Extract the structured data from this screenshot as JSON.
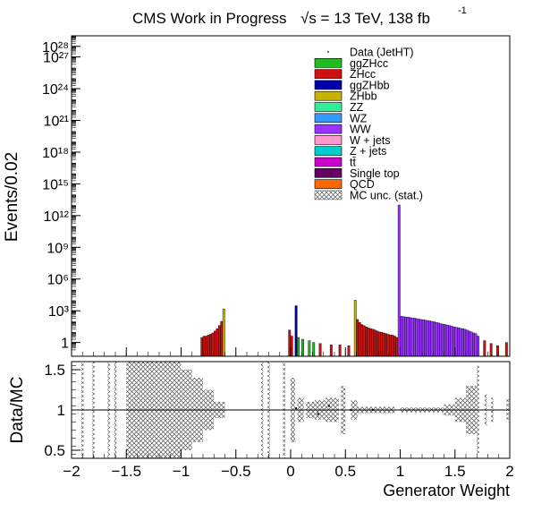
{
  "header": {
    "title": "CMS Work in Progress",
    "energy": "√s = 13 TeV, 138 fb",
    "lumi_sup": "-1"
  },
  "legend": {
    "entries": [
      {
        "label": "Data (JetHT)",
        "color": "#000000",
        "kind": "data"
      },
      {
        "label": "ggZHcc",
        "color": "#22bb22",
        "kind": "fill"
      },
      {
        "label": "ZHcc",
        "color": "#cc1111",
        "kind": "fill"
      },
      {
        "label": "ggZHbb",
        "color": "#0000aa",
        "kind": "fill"
      },
      {
        "label": "ZHbb",
        "color": "#c8b400",
        "kind": "fill"
      },
      {
        "label": "ZZ",
        "color": "#33ee99",
        "kind": "fill"
      },
      {
        "label": "WZ",
        "color": "#3399ff",
        "kind": "fill"
      },
      {
        "label": "WW",
        "color": "#9933ff",
        "kind": "fill"
      },
      {
        "label": "W + jets",
        "color": "#ff99cc",
        "kind": "fill"
      },
      {
        "label": "Z + jets",
        "color": "#00cccc",
        "kind": "fill"
      },
      {
        "label": "tt̄",
        "color": "#cc00cc",
        "kind": "fill"
      },
      {
        "label": "Single top",
        "color": "#660066",
        "kind": "fill"
      },
      {
        "label": "QCD",
        "color": "#ff6600",
        "kind": "fill"
      },
      {
        "label": "MC unc. (stat.)",
        "color": "#555555",
        "kind": "hatch"
      }
    ]
  },
  "chart_data": [
    {
      "type": "bar",
      "panel": "main",
      "ylabel": "Events/0.02",
      "yscale": "log",
      "xlim": [
        -2,
        2
      ],
      "ylim": [
        0.05,
        1e+29
      ],
      "y_ticks": [
        {
          "value": 1,
          "label": "1"
        },
        {
          "value": 1000,
          "label": "10³"
        },
        {
          "value": 1000000,
          "label": "10⁶"
        },
        {
          "value": 1000000000,
          "label": "10⁹"
        },
        {
          "value": 1000000000000.0,
          "label": "10¹²"
        },
        {
          "value": 1000000000000000.0,
          "label": "10¹⁵"
        },
        {
          "value": 1e+18,
          "label": "10¹⁸"
        },
        {
          "value": 1e+21,
          "label": "10²¹"
        },
        {
          "value": 1e+24,
          "label": "10²⁴"
        },
        {
          "value": 1e+27,
          "label": "10²⁷"
        },
        {
          "value": 1e+28,
          "label": "10²⁸"
        }
      ],
      "bins": [
        {
          "x": -0.81,
          "value": 3,
          "series": "ZHcc"
        },
        {
          "x": -0.79,
          "value": 4,
          "series": "ZHcc"
        },
        {
          "x": -0.77,
          "value": 4,
          "series": "ZHcc"
        },
        {
          "x": -0.75,
          "value": 5,
          "series": "ZHcc"
        },
        {
          "x": -0.73,
          "value": 6,
          "series": "ZHcc"
        },
        {
          "x": -0.71,
          "value": 8,
          "series": "ZHcc"
        },
        {
          "x": -0.69,
          "value": 12,
          "series": "ZHcc"
        },
        {
          "x": -0.67,
          "value": 20,
          "series": "ZHcc"
        },
        {
          "x": -0.65,
          "value": 40,
          "series": "ZHcc"
        },
        {
          "x": -0.63,
          "value": 100,
          "series": "ZHcc"
        },
        {
          "x": -0.61,
          "value": 1500,
          "series": "ZHbb"
        },
        {
          "x": -0.01,
          "value": 15,
          "series": "ZHcc"
        },
        {
          "x": 0.01,
          "value": 4,
          "series": "ZHcc"
        },
        {
          "x": 0.05,
          "value": 3000,
          "series": "ggZHbb"
        },
        {
          "x": 0.07,
          "value": 3,
          "series": "ggZHcc"
        },
        {
          "x": 0.11,
          "value": 2,
          "series": "ggZHcc"
        },
        {
          "x": 0.17,
          "value": 1.5,
          "series": "ggZHcc"
        },
        {
          "x": 0.21,
          "value": 1,
          "series": "ggZHcc"
        },
        {
          "x": 0.27,
          "value": 0.8,
          "series": "ZHcc"
        },
        {
          "x": 0.37,
          "value": 0.6,
          "series": "ZHcc"
        },
        {
          "x": 0.45,
          "value": 0.6,
          "series": "ZHcc"
        },
        {
          "x": 0.53,
          "value": 0.5,
          "series": "ZHcc"
        },
        {
          "x": 0.59,
          "value": 10000,
          "series": "ZHbb"
        },
        {
          "x": 0.61,
          "value": 150,
          "series": "ZHcc"
        },
        {
          "x": 0.63,
          "value": 80,
          "series": "ZHcc"
        },
        {
          "x": 0.65,
          "value": 50,
          "series": "ZHcc"
        },
        {
          "x": 0.67,
          "value": 40,
          "series": "ZHcc"
        },
        {
          "x": 0.69,
          "value": 30,
          "series": "ZHcc"
        },
        {
          "x": 0.71,
          "value": 25,
          "series": "ZHcc"
        },
        {
          "x": 0.73,
          "value": 20,
          "series": "ZHcc"
        },
        {
          "x": 0.75,
          "value": 18,
          "series": "ZHcc"
        },
        {
          "x": 0.77,
          "value": 15,
          "series": "ZHcc"
        },
        {
          "x": 0.79,
          "value": 12,
          "series": "ZHcc"
        },
        {
          "x": 0.81,
          "value": 10,
          "series": "ZHcc"
        },
        {
          "x": 0.83,
          "value": 9,
          "series": "ZHcc"
        },
        {
          "x": 0.85,
          "value": 8,
          "series": "ZHcc"
        },
        {
          "x": 0.87,
          "value": 7,
          "series": "ZHcc"
        },
        {
          "x": 0.89,
          "value": 6,
          "series": "ZHcc"
        },
        {
          "x": 0.91,
          "value": 5,
          "series": "ZHcc"
        },
        {
          "x": 0.93,
          "value": 5,
          "series": "ZHcc"
        },
        {
          "x": 0.95,
          "value": 4,
          "series": "ZHcc"
        },
        {
          "x": 0.97,
          "value": 3,
          "series": "ZHcc"
        },
        {
          "x": 0.99,
          "value": 10000000000000.0,
          "series": "WW"
        },
        {
          "x": 1.01,
          "value": 300,
          "series": "WW"
        },
        {
          "x": 1.03,
          "value": 280,
          "series": "WW"
        },
        {
          "x": 1.05,
          "value": 260,
          "series": "WW"
        },
        {
          "x": 1.07,
          "value": 250,
          "series": "WW"
        },
        {
          "x": 1.09,
          "value": 230,
          "series": "WW"
        },
        {
          "x": 1.11,
          "value": 210,
          "series": "WW"
        },
        {
          "x": 1.13,
          "value": 200,
          "series": "WW"
        },
        {
          "x": 1.15,
          "value": 180,
          "series": "WW"
        },
        {
          "x": 1.17,
          "value": 160,
          "series": "WW"
        },
        {
          "x": 1.19,
          "value": 150,
          "series": "WW"
        },
        {
          "x": 1.21,
          "value": 140,
          "series": "WW"
        },
        {
          "x": 1.23,
          "value": 130,
          "series": "WW"
        },
        {
          "x": 1.25,
          "value": 120,
          "series": "WW"
        },
        {
          "x": 1.27,
          "value": 110,
          "series": "WW"
        },
        {
          "x": 1.29,
          "value": 100,
          "series": "WW"
        },
        {
          "x": 1.31,
          "value": 90,
          "series": "WW"
        },
        {
          "x": 1.33,
          "value": 80,
          "series": "WW"
        },
        {
          "x": 1.35,
          "value": 70,
          "series": "WW"
        },
        {
          "x": 1.37,
          "value": 60,
          "series": "WW"
        },
        {
          "x": 1.39,
          "value": 55,
          "series": "WW"
        },
        {
          "x": 1.41,
          "value": 50,
          "series": "WW"
        },
        {
          "x": 1.43,
          "value": 45,
          "series": "WW"
        },
        {
          "x": 1.45,
          "value": 40,
          "series": "WW"
        },
        {
          "x": 1.47,
          "value": 35,
          "series": "WW"
        },
        {
          "x": 1.49,
          "value": 30,
          "series": "WW"
        },
        {
          "x": 1.51,
          "value": 28,
          "series": "WW"
        },
        {
          "x": 1.53,
          "value": 25,
          "series": "WW"
        },
        {
          "x": 1.55,
          "value": 22,
          "series": "WW"
        },
        {
          "x": 1.57,
          "value": 20,
          "series": "WW"
        },
        {
          "x": 1.59,
          "value": 18,
          "series": "WW"
        },
        {
          "x": 1.61,
          "value": 15,
          "series": "WW"
        },
        {
          "x": 1.63,
          "value": 12,
          "series": "WW"
        },
        {
          "x": 1.65,
          "value": 10,
          "series": "WW"
        },
        {
          "x": 1.67,
          "value": 8,
          "series": "WW"
        },
        {
          "x": 1.69,
          "value": 7,
          "series": "WW"
        },
        {
          "x": 1.71,
          "value": 4,
          "series": "WW"
        },
        {
          "x": 1.77,
          "value": 1.5,
          "series": "ZHcc"
        },
        {
          "x": 1.83,
          "value": 0.8,
          "series": "ZHcc"
        },
        {
          "x": 1.89,
          "value": 0.5,
          "series": "ZHcc"
        },
        {
          "x": 1.97,
          "value": 1,
          "series": "ZHcc"
        }
      ]
    },
    {
      "type": "scatter",
      "panel": "ratio",
      "ylabel": "Data/MC",
      "xlabel": "Generator Weight",
      "xlim": [
        -2,
        2
      ],
      "ylim": [
        0.4,
        1.6
      ],
      "x_ticks": [
        -2,
        -1.5,
        -1,
        -0.5,
        0,
        0.5,
        1,
        1.5,
        2
      ],
      "y_ticks": [
        0.5,
        1,
        1.5
      ],
      "reference_line": 1,
      "uncertainty_band": [
        {
          "x0": -1.91,
          "x1": -1.89,
          "lo": 0.4,
          "hi": 1.6
        },
        {
          "x0": -1.81,
          "x1": -1.79,
          "lo": 0.4,
          "hi": 1.6
        },
        {
          "x0": -1.67,
          "x1": -1.65,
          "lo": 0.4,
          "hi": 1.6
        },
        {
          "x0": -1.61,
          "x1": -1.59,
          "lo": 0.4,
          "hi": 1.6
        },
        {
          "x0": -1.5,
          "x1": -1.0,
          "lo": 0.4,
          "hi": 1.6
        },
        {
          "x0": -1.0,
          "x1": -0.9,
          "lo": 0.5,
          "hi": 1.5
        },
        {
          "x0": -0.9,
          "x1": -0.8,
          "lo": 0.6,
          "hi": 1.4
        },
        {
          "x0": -0.8,
          "x1": -0.7,
          "lo": 0.75,
          "hi": 1.25
        },
        {
          "x0": -0.7,
          "x1": -0.6,
          "lo": 0.9,
          "hi": 1.1
        },
        {
          "x0": -0.27,
          "x1": -0.25,
          "lo": 0.4,
          "hi": 1.6
        },
        {
          "x0": -0.21,
          "x1": -0.19,
          "lo": 0.4,
          "hi": 1.6
        },
        {
          "x0": -0.07,
          "x1": -0.05,
          "lo": 0.4,
          "hi": 1.6
        },
        {
          "x0": 0.0,
          "x1": 0.04,
          "lo": 0.6,
          "hi": 1.4
        },
        {
          "x0": 0.06,
          "x1": 0.12,
          "lo": 0.85,
          "hi": 1.15
        },
        {
          "x0": 0.14,
          "x1": 0.22,
          "lo": 0.9,
          "hi": 1.1
        },
        {
          "x0": 0.22,
          "x1": 0.32,
          "lo": 0.88,
          "hi": 1.12
        },
        {
          "x0": 0.32,
          "x1": 0.44,
          "lo": 0.85,
          "hi": 1.15
        },
        {
          "x0": 0.46,
          "x1": 0.5,
          "lo": 0.7,
          "hi": 1.3
        },
        {
          "x0": 0.55,
          "x1": 0.61,
          "lo": 0.88,
          "hi": 1.12
        },
        {
          "x0": 0.61,
          "x1": 0.95,
          "lo": 0.96,
          "hi": 1.04
        },
        {
          "x0": 1.0,
          "x1": 1.4,
          "lo": 0.97,
          "hi": 1.03
        },
        {
          "x0": 1.4,
          "x1": 1.5,
          "lo": 0.93,
          "hi": 1.07
        },
        {
          "x0": 1.5,
          "x1": 1.6,
          "lo": 0.85,
          "hi": 1.15
        },
        {
          "x0": 1.6,
          "x1": 1.7,
          "lo": 0.7,
          "hi": 1.3
        },
        {
          "x0": 1.7,
          "x1": 1.72,
          "lo": 0.45,
          "hi": 1.55
        },
        {
          "x0": 1.77,
          "x1": 1.79,
          "lo": 0.8,
          "hi": 1.2
        },
        {
          "x0": 1.83,
          "x1": 1.85,
          "lo": 0.85,
          "hi": 1.15
        },
        {
          "x0": 1.97,
          "x1": 1.99,
          "lo": 0.85,
          "hi": 1.15
        }
      ],
      "points": [
        {
          "x": 0.05,
          "y": 1.02
        },
        {
          "x": 0.25,
          "y": 0.95
        },
        {
          "x": 0.35,
          "y": 1.05
        },
        {
          "x": 0.55,
          "y": 1.0
        },
        {
          "x": 0.75,
          "y": 1.0
        }
      ]
    }
  ]
}
